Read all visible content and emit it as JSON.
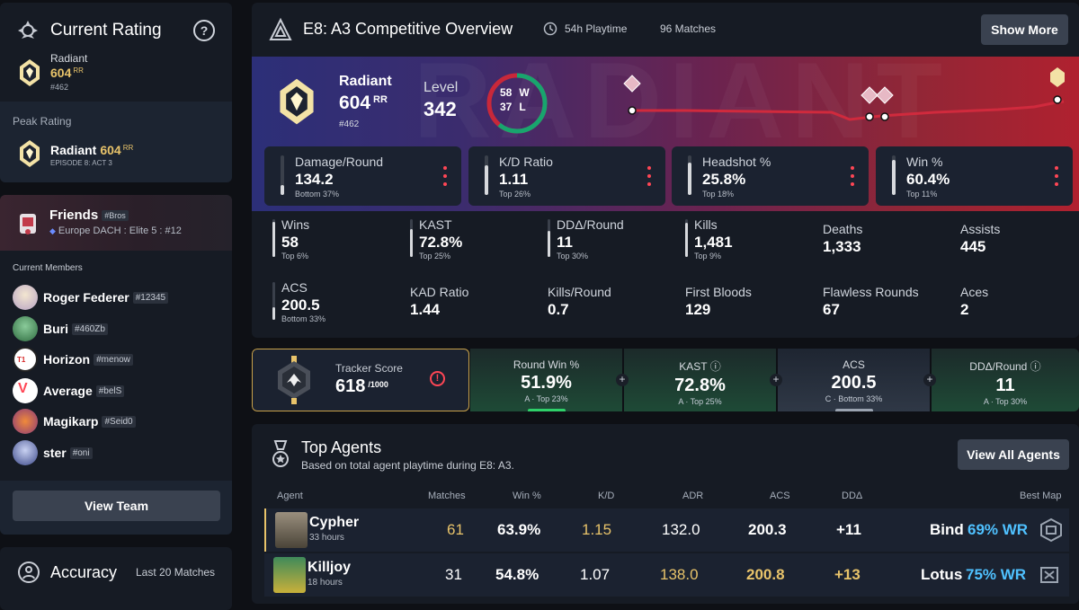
{
  "rating": {
    "title": "Current Rating",
    "rank": "Radiant",
    "rr": "604",
    "rr_suffix": "RR",
    "position": "#462",
    "peak_label": "Peak Rating",
    "peak_rank": "Radiant",
    "peak_rr": "604",
    "peak_rr_suffix": "RR",
    "peak_episode": "EPISODE 8: ACT 3"
  },
  "friends": {
    "title": "Friends",
    "team_tag": "#Bros",
    "league": "Europe DACH : Elite 5 : #12",
    "members_label": "Current Members",
    "members": [
      {
        "name": "Roger Federer",
        "tag": "#12345"
      },
      {
        "name": "Buri",
        "tag": "#460Zb"
      },
      {
        "name": "Horizon",
        "tag": "#menow"
      },
      {
        "name": "Average",
        "tag": "#belS"
      },
      {
        "name": "Magikarp",
        "tag": "#Seid0"
      },
      {
        "name": "ster",
        "tag": "#oni"
      }
    ],
    "view_team": "View Team"
  },
  "accuracy": {
    "title": "Accuracy",
    "range": "Last 20 Matches"
  },
  "overview": {
    "title": "E8: A3 Competitive Overview",
    "playtime": "54h Playtime",
    "matches": "96 Matches",
    "show_more": "Show More",
    "watermark": "RADIANT",
    "rank": "Radiant",
    "rr": "604",
    "rr_suffix": "RR",
    "position": "#462",
    "level_label": "Level",
    "level": "342",
    "wins": "58",
    "wins_letter": "W",
    "losses": "37",
    "losses_letter": "L",
    "win_fraction": 0.61,
    "stats": [
      {
        "label": "Damage/Round",
        "value": "134.2",
        "sub": "Bottom 37%",
        "fill": 0.25
      },
      {
        "label": "K/D Ratio",
        "value": "1.11",
        "sub": "Top 26%",
        "fill": 0.75
      },
      {
        "label": "Headshot %",
        "value": "25.8%",
        "sub": "Top 18%",
        "fill": 0.82
      },
      {
        "label": "Win %",
        "value": "60.4%",
        "sub": "Top 11%",
        "fill": 0.89
      }
    ],
    "minis": [
      {
        "label": "Wins",
        "value": "58",
        "sub": "Top 6%",
        "fill": 0.94
      },
      {
        "label": "KAST",
        "value": "72.8%",
        "sub": "Top 25%",
        "fill": 0.75
      },
      {
        "label": "DDΔ/Round",
        "value": "11",
        "sub": "Top 30%",
        "fill": 0.7
      },
      {
        "label": "Kills",
        "value": "1,481",
        "sub": "Top 9%",
        "fill": 0.91
      },
      {
        "label": "Deaths",
        "value": "1,333"
      },
      {
        "label": "Assists",
        "value": "445"
      },
      {
        "label": "ACS",
        "value": "200.5",
        "sub": "Bottom 33%",
        "fill": 0.33
      },
      {
        "label": "KAD Ratio",
        "value": "1.44"
      },
      {
        "label": "Kills/Round",
        "value": "0.7"
      },
      {
        "label": "First Bloods",
        "value": "129"
      },
      {
        "label": "Flawless Rounds",
        "value": "67"
      },
      {
        "label": "Aces",
        "value": "2"
      }
    ]
  },
  "tracker": {
    "label": "Tracker Score",
    "score": "618",
    "max": "/1000",
    "cells": [
      {
        "label": "Round Win %",
        "value": "51.9%",
        "sub": "A · Top 23%",
        "color": "#2fd06a"
      },
      {
        "label": "KAST ⓘ",
        "value": "72.8%",
        "sub": "A · Top 25%",
        "color": "#2fd06a"
      },
      {
        "label": "ACS",
        "value": "200.5",
        "sub": "C · Bottom 33%",
        "color": "#9aa3b0"
      },
      {
        "label": "DDΔ/Round ⓘ",
        "value": "11",
        "sub": "A · Top 30%",
        "color": "#2fd06a"
      }
    ]
  },
  "agents": {
    "title": "Top Agents",
    "subtitle": "Based on total agent playtime during E8: A3.",
    "view_all": "View All Agents",
    "columns": {
      "agent": "Agent",
      "matches": "Matches",
      "win": "Win %",
      "kd": "K/D",
      "adr": "ADR",
      "acs": "ACS",
      "dd": "DDΔ",
      "best_map": "Best Map"
    },
    "rows": [
      {
        "name": "Cypher",
        "hours": "33 hours",
        "matches": "61",
        "win": "63.9%",
        "kd": "1.15",
        "adr": "132.0",
        "acs": "200.3",
        "dd": "+11",
        "map": "Bind",
        "map_wr": "69% WR"
      },
      {
        "name": "Killjoy",
        "hours": "18 hours",
        "matches": "31",
        "win": "54.8%",
        "kd": "1.07",
        "adr": "138.0",
        "acs": "200.8",
        "dd": "+13",
        "map": "Lotus",
        "map_wr": "75% WR"
      }
    ]
  },
  "colors": {
    "accent": "#ff4655",
    "gold": "#e8c36a",
    "green": "#2fd06a",
    "blue": "#4fc1ff"
  }
}
